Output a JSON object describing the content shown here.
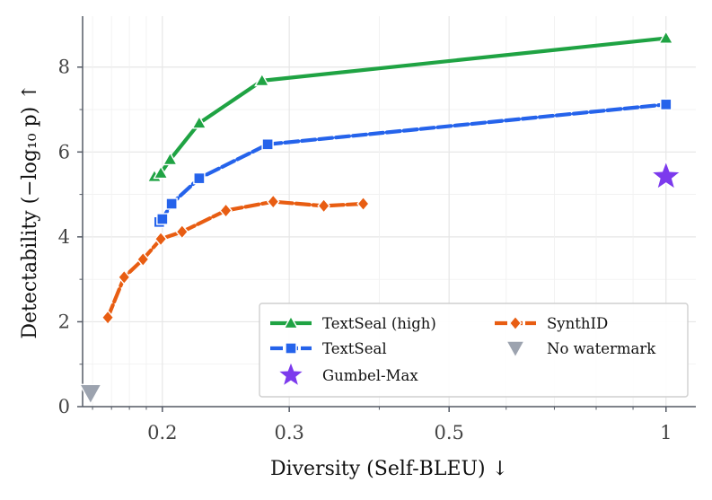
{
  "chart_data": {
    "type": "line",
    "xlabel": "Diversity (Self-BLEU) ↓",
    "ylabel": "Detectability (−log₁₀ p) ↑",
    "x_scale": "log",
    "xlim": [
      0.155,
      1.1
    ],
    "ylim": [
      0,
      9.2
    ],
    "x_ticks": [
      0.2,
      0.3,
      0.5,
      1
    ],
    "x_tick_labels": [
      "0.2",
      "0.3",
      "0.5",
      "1"
    ],
    "y_ticks": [
      0,
      2,
      4,
      6,
      8
    ],
    "y_tick_labels": [
      "0",
      "2",
      "4",
      "6",
      "8"
    ],
    "grid": true,
    "legend_position": "bottom-right",
    "series": [
      {
        "name": "TextSeal (high)",
        "color": "#1fa343",
        "marker": "triangle",
        "line": "solid",
        "x": [
          0.195,
          0.199,
          0.205,
          0.225,
          0.275,
          1.0
        ],
        "y": [
          5.42,
          5.5,
          5.82,
          6.68,
          7.68,
          8.68
        ]
      },
      {
        "name": "TextSeal",
        "color": "#2563eb",
        "marker": "square",
        "line": "dashed",
        "x": [
          0.198,
          0.2,
          0.206,
          0.225,
          0.28,
          1.0
        ],
        "y": [
          4.35,
          4.42,
          4.78,
          5.38,
          6.18,
          7.12
        ]
      },
      {
        "name": "Gumbel-Max",
        "color": "#7c3aed",
        "marker": "star",
        "line": "none",
        "x": [
          1.0
        ],
        "y": [
          5.42
        ]
      },
      {
        "name": "SynthID",
        "color": "#e85d12",
        "marker": "diamond",
        "line": "dashed",
        "x": [
          0.168,
          0.177,
          0.188,
          0.199,
          0.213,
          0.245,
          0.285,
          0.335,
          0.38
        ],
        "y": [
          2.1,
          3.05,
          3.47,
          3.95,
          4.12,
          4.62,
          4.83,
          4.73,
          4.78
        ]
      },
      {
        "name": "No watermark",
        "color": "#9ca3af",
        "marker": "triangle-down",
        "line": "none",
        "x": [
          0.159
        ],
        "y": [
          0.32
        ]
      }
    ]
  }
}
